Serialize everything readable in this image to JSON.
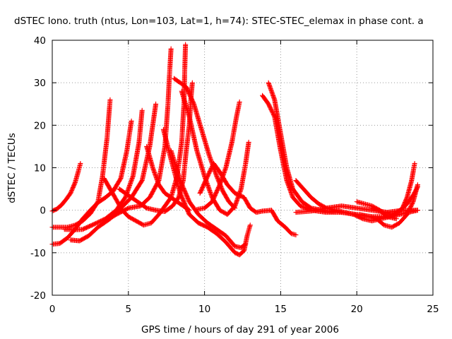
{
  "chart_data": {
    "type": "scatter",
    "title": "dSTEC Iono. truth (ntus, Lon=103, Lat=1, h=74): STEC-STEC_elemax in phase cont. a",
    "xlabel": "GPS time / hours of day 291 of year 2006",
    "ylabel": "dSTEC  / TECUs",
    "xlim": [
      0,
      25
    ],
    "ylim": [
      -20,
      40
    ],
    "x_ticks": [
      0,
      5,
      10,
      15,
      20,
      25
    ],
    "y_ticks": [
      -20,
      -10,
      0,
      10,
      20,
      30,
      40
    ],
    "x_tick_labels": [
      "0",
      "5",
      "10",
      "15",
      "20",
      "25"
    ],
    "y_tick_labels": [
      "-20",
      "-10",
      "0",
      "10",
      "20",
      "30",
      "40"
    ],
    "grid": true,
    "marker": "plus",
    "color": "#ff0000",
    "series": [
      {
        "points": [
          [
            0.0,
            -0.2
          ],
          [
            0.3,
            0.3
          ],
          [
            0.6,
            1.2
          ],
          [
            0.9,
            2.5
          ],
          [
            1.2,
            4.0
          ],
          [
            1.5,
            6.5
          ],
          [
            1.7,
            9.0
          ],
          [
            1.85,
            11.0
          ]
        ]
      },
      {
        "points": [
          [
            0.0,
            -4.0
          ],
          [
            0.5,
            -4.0
          ],
          [
            1.0,
            -4.0
          ],
          [
            1.5,
            -3.5
          ],
          [
            2.0,
            -2.5
          ],
          [
            2.5,
            -0.8
          ],
          [
            3.0,
            2.0
          ],
          [
            3.3,
            8.0
          ],
          [
            3.6,
            17.0
          ],
          [
            3.8,
            26.0
          ]
        ]
      },
      {
        "points": [
          [
            0.0,
            -8.0
          ],
          [
            0.5,
            -7.8
          ],
          [
            1.0,
            -6.5
          ],
          [
            1.5,
            -4.5
          ],
          [
            2.0,
            -2.0
          ],
          [
            2.5,
            0.0
          ],
          [
            3.0,
            1.8
          ],
          [
            3.5,
            3.0
          ],
          [
            4.0,
            4.5
          ],
          [
            4.5,
            7.5
          ],
          [
            4.9,
            14.0
          ],
          [
            5.2,
            21.0
          ]
        ]
      },
      {
        "points": [
          [
            0.8,
            -4.5
          ],
          [
            1.5,
            -4.6
          ],
          [
            2.0,
            -4.5
          ],
          [
            2.8,
            -3.2
          ],
          [
            3.5,
            -2.0
          ],
          [
            4.2,
            0.0
          ],
          [
            4.8,
            3.0
          ],
          [
            5.3,
            8.0
          ],
          [
            5.7,
            16.0
          ],
          [
            5.9,
            23.5
          ]
        ]
      },
      {
        "points": [
          [
            1.2,
            -7.0
          ],
          [
            1.8,
            -7.2
          ],
          [
            2.4,
            -6.0
          ],
          [
            3.0,
            -4.0
          ],
          [
            3.8,
            -2.0
          ],
          [
            4.5,
            0.5
          ],
          [
            5.2,
            3.0
          ],
          [
            5.9,
            7.0
          ],
          [
            6.4,
            15.0
          ],
          [
            6.8,
            25.0
          ]
        ]
      },
      {
        "points": [
          [
            3.5,
            -2.5
          ],
          [
            4.2,
            -1.0
          ],
          [
            5.0,
            0.5
          ],
          [
            5.8,
            1.0
          ],
          [
            6.4,
            3.0
          ],
          [
            7.0,
            7.0
          ],
          [
            7.4,
            15.0
          ],
          [
            7.6,
            25.0
          ],
          [
            7.7,
            32.0
          ],
          [
            7.8,
            38.0
          ]
        ]
      },
      {
        "points": [
          [
            3.4,
            7.5
          ],
          [
            3.8,
            5.0
          ],
          [
            4.2,
            2.5
          ],
          [
            4.6,
            0.0
          ],
          [
            5.0,
            -1.5
          ],
          [
            5.5,
            -2.5
          ],
          [
            6.0,
            -3.5
          ],
          [
            6.5,
            -3.0
          ],
          [
            7.0,
            -1.0
          ],
          [
            7.4,
            1.0
          ],
          [
            7.8,
            3.0
          ],
          [
            8.2,
            8.0
          ],
          [
            8.5,
            16.0
          ],
          [
            8.65,
            25.0
          ],
          [
            8.7,
            33.0
          ],
          [
            8.75,
            39.0
          ]
        ]
      },
      {
        "points": [
          [
            4.4,
            5.0
          ],
          [
            5.0,
            3.5
          ],
          [
            5.6,
            2.0
          ],
          [
            6.2,
            0.5
          ],
          [
            6.8,
            0.0
          ],
          [
            7.4,
            -0.3
          ],
          [
            7.9,
            1.0
          ],
          [
            8.3,
            3.0
          ],
          [
            8.6,
            7.0
          ],
          [
            8.8,
            14.0
          ],
          [
            9.0,
            20.0
          ],
          [
            9.1,
            26.0
          ],
          [
            9.2,
            30.0
          ]
        ]
      },
      {
        "points": [
          [
            6.2,
            15.0
          ],
          [
            6.6,
            10.0
          ],
          [
            7.0,
            6.0
          ],
          [
            7.4,
            4.0
          ],
          [
            7.8,
            3.0
          ],
          [
            8.2,
            2.0
          ],
          [
            8.6,
            1.0
          ],
          [
            9.0,
            0.0
          ]
        ]
      },
      {
        "points": [
          [
            7.3,
            19.0
          ],
          [
            7.8,
            12.0
          ],
          [
            8.4,
            4.0
          ],
          [
            9.0,
            -1.0
          ],
          [
            9.6,
            -3.0
          ],
          [
            10.2,
            -4.0
          ],
          [
            10.8,
            -5.5
          ],
          [
            11.4,
            -7.5
          ],
          [
            12.0,
            -10.0
          ],
          [
            12.3,
            -10.5
          ],
          [
            12.6,
            -9.5
          ],
          [
            12.8,
            -6.0
          ],
          [
            13.0,
            -3.5
          ]
        ]
      },
      {
        "points": [
          [
            7.8,
            14.0
          ],
          [
            8.4,
            7.0
          ],
          [
            9.0,
            2.0
          ],
          [
            9.6,
            -1.0
          ],
          [
            10.2,
            -3.0
          ],
          [
            10.8,
            -4.5
          ],
          [
            11.4,
            -6.0
          ],
          [
            12.0,
            -8.5
          ],
          [
            12.4,
            -8.8
          ],
          [
            12.7,
            -8.0
          ]
        ]
      },
      {
        "points": [
          [
            8.5,
            28.0
          ],
          [
            9.0,
            22.0
          ],
          [
            9.5,
            14.0
          ],
          [
            10.0,
            8.0
          ],
          [
            10.5,
            3.0
          ],
          [
            11.0,
            0.0
          ],
          [
            11.5,
            -1.0
          ],
          [
            12.0,
            1.0
          ],
          [
            12.4,
            5.0
          ],
          [
            12.7,
            11.0
          ],
          [
            12.9,
            16.0
          ]
        ]
      },
      {
        "points": [
          [
            8.0,
            31.0
          ],
          [
            8.8,
            29.0
          ],
          [
            9.3,
            25.0
          ],
          [
            9.8,
            19.0
          ],
          [
            10.3,
            13.0
          ],
          [
            10.8,
            8.0
          ],
          [
            11.2,
            4.5
          ],
          [
            11.6,
            2.0
          ],
          [
            12.0,
            0.5
          ]
        ]
      },
      {
        "points": [
          [
            9.5,
            0.2
          ],
          [
            10.0,
            0.5
          ],
          [
            10.5,
            2.0
          ],
          [
            11.0,
            6.0
          ],
          [
            11.4,
            10.0
          ],
          [
            11.8,
            16.0
          ],
          [
            12.1,
            22.0
          ],
          [
            12.3,
            25.5
          ]
        ]
      },
      {
        "points": [
          [
            9.7,
            4.0
          ],
          [
            10.2,
            8.0
          ],
          [
            10.6,
            11.0
          ],
          [
            11.0,
            9.0
          ],
          [
            11.5,
            6.0
          ],
          [
            12.0,
            4.0
          ],
          [
            12.6,
            3.0
          ],
          [
            13.0,
            0.5
          ],
          [
            13.4,
            -0.5
          ],
          [
            13.8,
            -0.2
          ],
          [
            14.4,
            0.0
          ],
          [
            14.8,
            -2.5
          ],
          [
            15.3,
            -4.0
          ],
          [
            15.7,
            -5.5
          ],
          [
            16.0,
            -5.8
          ]
        ]
      },
      {
        "points": [
          [
            13.8,
            27.0
          ],
          [
            14.2,
            25.0
          ],
          [
            14.6,
            22.0
          ],
          [
            15.0,
            14.0
          ],
          [
            15.4,
            7.0
          ],
          [
            15.8,
            3.0
          ],
          [
            16.3,
            1.0
          ],
          [
            17.0,
            0.0
          ],
          [
            18.0,
            -0.5
          ],
          [
            19.0,
            -0.5
          ]
        ]
      },
      {
        "points": [
          [
            14.2,
            30.0
          ],
          [
            14.6,
            26.0
          ],
          [
            15.0,
            18.0
          ],
          [
            15.4,
            10.0
          ],
          [
            15.8,
            5.0
          ],
          [
            16.4,
            2.0
          ],
          [
            17.0,
            0.5
          ],
          [
            18.0,
            -0.2
          ],
          [
            19.0,
            -0.5
          ],
          [
            20.0,
            -1.0
          ],
          [
            21.0,
            -1.5
          ],
          [
            22.0,
            -1.5
          ],
          [
            22.6,
            -2.0
          ]
        ]
      },
      {
        "points": [
          [
            16.0,
            7.0
          ],
          [
            16.5,
            5.0
          ],
          [
            17.0,
            3.0
          ],
          [
            17.5,
            1.5
          ],
          [
            18.0,
            0.5
          ],
          [
            18.6,
            0.0
          ],
          [
            19.2,
            -0.5
          ],
          [
            19.8,
            -1.0
          ],
          [
            20.4,
            -2.0
          ],
          [
            21.0,
            -2.5
          ],
          [
            21.6,
            -2.0
          ],
          [
            22.2,
            -1.5
          ],
          [
            22.8,
            -1.0
          ],
          [
            23.4,
            -0.5
          ],
          [
            24.0,
            0.0
          ]
        ]
      },
      {
        "points": [
          [
            16.0,
            -0.5
          ],
          [
            17.0,
            -0.2
          ],
          [
            18.0,
            0.5
          ],
          [
            19.0,
            1.0
          ],
          [
            20.0,
            0.5
          ],
          [
            21.0,
            0.0
          ],
          [
            22.0,
            -0.5
          ],
          [
            23.0,
            0.0
          ],
          [
            24.0,
            0.0
          ]
        ]
      },
      {
        "points": [
          [
            20.0,
            2.0
          ],
          [
            20.5,
            1.5
          ],
          [
            21.0,
            1.0
          ],
          [
            21.5,
            0.0
          ],
          [
            22.0,
            -1.5
          ],
          [
            22.5,
            -1.0
          ],
          [
            23.0,
            0.5
          ],
          [
            23.3,
            3.0
          ],
          [
            23.6,
            7.0
          ],
          [
            23.8,
            11.0
          ]
        ]
      },
      {
        "points": [
          [
            20.2,
            -1.0
          ],
          [
            20.8,
            -1.5
          ],
          [
            21.3,
            -2.0
          ],
          [
            21.8,
            -3.5
          ],
          [
            22.3,
            -4.0
          ],
          [
            22.8,
            -3.0
          ],
          [
            23.3,
            -1.0
          ],
          [
            23.7,
            2.0
          ],
          [
            24.0,
            6.0
          ]
        ]
      },
      {
        "points": [
          [
            21.0,
            0.5
          ],
          [
            21.8,
            -0.5
          ],
          [
            22.4,
            -1.0
          ],
          [
            22.9,
            0.0
          ],
          [
            23.3,
            1.5
          ],
          [
            23.7,
            3.5
          ],
          [
            24.0,
            5.5
          ]
        ]
      }
    ]
  }
}
